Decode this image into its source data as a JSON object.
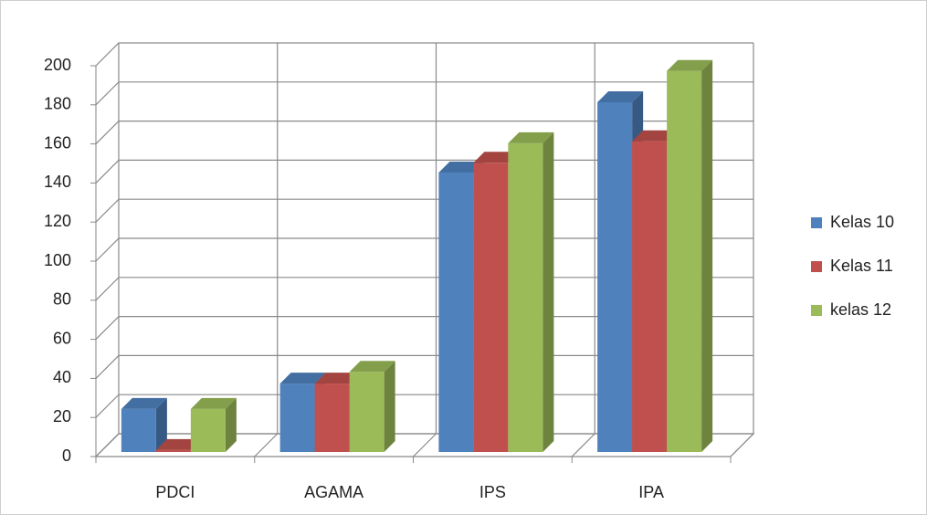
{
  "chart_data": {
    "type": "bar3d",
    "categories": [
      "PDCI",
      "AGAMA",
      "IPS",
      "IPA"
    ],
    "series": [
      {
        "name": "Kelas 10",
        "color": "#4f81bd",
        "values": [
          22,
          35,
          143,
          179
        ]
      },
      {
        "name": "Kelas 11",
        "color": "#c0504d",
        "values": [
          1,
          35,
          148,
          159
        ]
      },
      {
        "name": "kelas 12",
        "color": "#9bbb59",
        "values": [
          22,
          41,
          158,
          195
        ]
      }
    ],
    "ylim": [
      0,
      200
    ],
    "yticks": [
      0,
      20,
      40,
      60,
      80,
      100,
      120,
      140,
      160,
      180,
      200
    ],
    "grid": true,
    "legend": "right"
  }
}
